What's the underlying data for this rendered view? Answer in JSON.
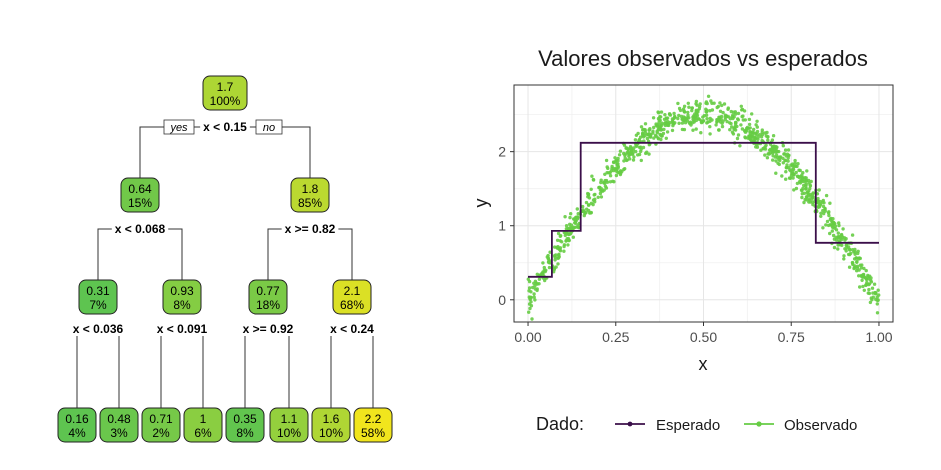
{
  "colors": {
    "node_low": "#5ec450",
    "node_high": "#f1e51d",
    "step_line": "#3b0f4a",
    "points": "#66cc44",
    "panel_bg": "#ffffff",
    "grid": "#e6e6e6"
  },
  "chart_data": [
    {
      "type": "diagram",
      "labels": {
        "yes": "yes",
        "no": "no"
      },
      "nodes": [
        {
          "id": "n1",
          "value": "1.7",
          "pct": "100%",
          "split": "x < 0.15",
          "fill": 0.54
        },
        {
          "id": "n2",
          "value": "0.64",
          "pct": "15%",
          "split": "x < 0.068",
          "fill": 0.13
        },
        {
          "id": "n3",
          "value": "1.8",
          "pct": "85%",
          "split": "x >= 0.82",
          "fill": 0.63
        },
        {
          "id": "n4",
          "value": "0.31",
          "pct": "7%",
          "split": "x < 0.036",
          "fill": 0.0
        },
        {
          "id": "n5",
          "value": "0.93",
          "pct": "8%",
          "split": "x < 0.091",
          "fill": 0.26
        },
        {
          "id": "n6",
          "value": "0.77",
          "pct": "18%",
          "split": "x >= 0.92",
          "fill": 0.19
        },
        {
          "id": "n7",
          "value": "2.1",
          "pct": "68%",
          "split": "x < 0.24",
          "fill": 0.85
        },
        {
          "id": "l1",
          "value": "0.16",
          "pct": "4%",
          "fill": 0.0
        },
        {
          "id": "l2",
          "value": "0.48",
          "pct": "3%",
          "fill": 0.08
        },
        {
          "id": "l3",
          "value": "0.71",
          "pct": "2%",
          "fill": 0.16
        },
        {
          "id": "l4",
          "value": "1",
          "pct": "6%",
          "fill": 0.3
        },
        {
          "id": "l5",
          "value": "0.35",
          "pct": "8%",
          "fill": 0.03
        },
        {
          "id": "l6",
          "value": "1.1",
          "pct": "10%",
          "fill": 0.37
        },
        {
          "id": "l7",
          "value": "1.6",
          "pct": "10%",
          "fill": 0.55
        },
        {
          "id": "l8",
          "value": "2.2",
          "pct": "58%",
          "fill": 1.0
        }
      ],
      "edges": [
        [
          "n1",
          "n2"
        ],
        [
          "n1",
          "n3"
        ],
        [
          "n2",
          "n4"
        ],
        [
          "n2",
          "n5"
        ],
        [
          "n3",
          "n6"
        ],
        [
          "n3",
          "n7"
        ],
        [
          "n4",
          "l1"
        ],
        [
          "n4",
          "l2"
        ],
        [
          "n5",
          "l3"
        ],
        [
          "n5",
          "l4"
        ],
        [
          "n6",
          "l5"
        ],
        [
          "n6",
          "l6"
        ],
        [
          "n7",
          "l7"
        ],
        [
          "n7",
          "l8"
        ]
      ]
    },
    {
      "type": "scatter",
      "title": "Valores observados vs esperados",
      "xlabel": "x",
      "ylabel": "y",
      "xlim": [
        -0.04,
        1.04
      ],
      "ylim": [
        -0.3,
        2.9
      ],
      "xticks": [
        0.0,
        0.25,
        0.5,
        0.75,
        1.0
      ],
      "xtick_labels": [
        "0.00",
        "0.25",
        "0.50",
        "0.75",
        "1.00"
      ],
      "yticks": [
        0,
        1,
        2
      ],
      "ytick_labels": [
        "0",
        "1",
        "2"
      ],
      "grid": true,
      "legend": {
        "position": "bottom",
        "title": "Dado:",
        "entries": [
          "Esperado",
          "Observado"
        ]
      },
      "series": [
        {
          "name": "Esperado",
          "kind": "step",
          "x": [
            0.0,
            0.068,
            0.068,
            0.15,
            0.15,
            0.82,
            0.82,
            1.0
          ],
          "y": [
            0.31,
            0.31,
            0.93,
            0.93,
            2.12,
            2.12,
            0.77,
            0.77
          ]
        },
        {
          "name": "Observado",
          "kind": "points",
          "n_points": 1000,
          "x_range": [
            0.0,
            1.0
          ],
          "curve": "2.5 * sin(pi * x)",
          "spread": 0.1
        }
      ]
    }
  ]
}
